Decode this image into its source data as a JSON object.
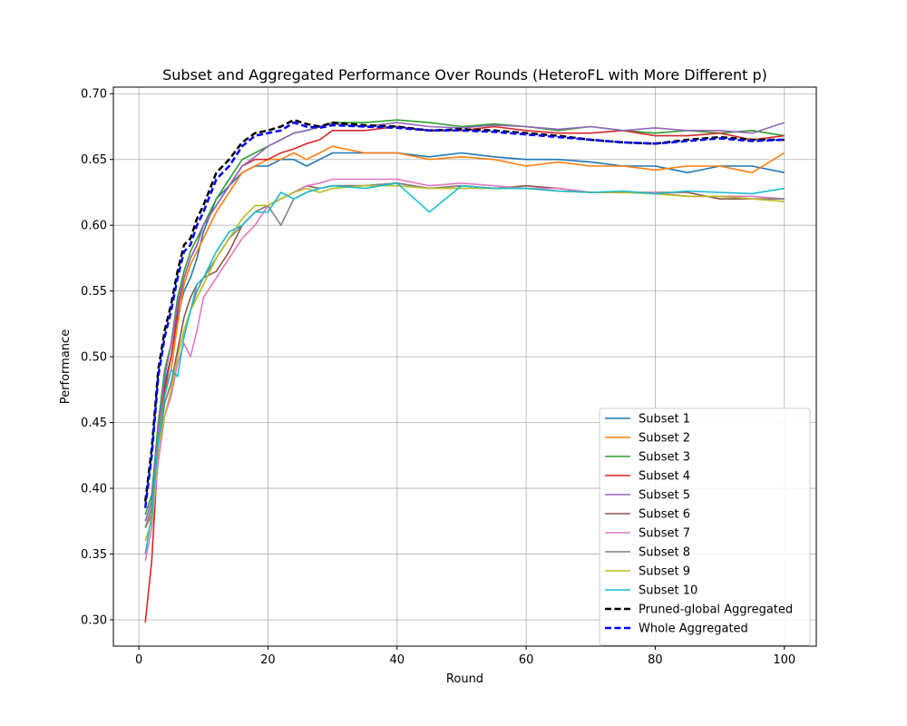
{
  "chart_data": {
    "type": "line",
    "title": "Subset and Aggregated Performance Over Rounds (HeteroFL with More Different p)",
    "xlabel": "Round",
    "ylabel": "Performance",
    "xlim": [
      -3.95,
      104.95
    ],
    "ylim": [
      0.28,
      0.705
    ],
    "xticks": [
      0,
      20,
      40,
      60,
      80,
      100
    ],
    "yticks": [
      0.3,
      0.35,
      0.4,
      0.45,
      0.5,
      0.55,
      0.6,
      0.65,
      0.7
    ],
    "ytick_labels": [
      "0.30",
      "0.35",
      "0.40",
      "0.45",
      "0.50",
      "0.55",
      "0.60",
      "0.65",
      "0.70"
    ],
    "grid": true,
    "legend_position": "lower right",
    "series": [
      {
        "name": "Subset 1",
        "color": "#1f77b4",
        "dashed": false,
        "x": [
          1,
          2,
          3,
          4,
          5,
          6,
          7,
          8,
          9,
          10,
          12,
          14,
          16,
          18,
          20,
          22,
          24,
          26,
          28,
          30,
          35,
          40,
          45,
          50,
          55,
          60,
          65,
          70,
          75,
          80,
          85,
          90,
          95,
          100
        ],
        "y": [
          0.375,
          0.39,
          0.445,
          0.48,
          0.5,
          0.53,
          0.55,
          0.56,
          0.575,
          0.595,
          0.62,
          0.63,
          0.64,
          0.645,
          0.645,
          0.65,
          0.65,
          0.645,
          0.65,
          0.655,
          0.655,
          0.655,
          0.652,
          0.655,
          0.652,
          0.65,
          0.65,
          0.648,
          0.645,
          0.645,
          0.64,
          0.645,
          0.645,
          0.64
        ]
      },
      {
        "name": "Subset 2",
        "color": "#ff7f0e",
        "dashed": false,
        "x": [
          1,
          2,
          3,
          4,
          5,
          6,
          7,
          8,
          9,
          10,
          12,
          14,
          16,
          18,
          20,
          22,
          24,
          26,
          28,
          30,
          35,
          40,
          45,
          50,
          55,
          60,
          65,
          70,
          75,
          80,
          85,
          90,
          95,
          100
        ],
        "y": [
          0.37,
          0.38,
          0.44,
          0.475,
          0.49,
          0.525,
          0.555,
          0.57,
          0.58,
          0.59,
          0.61,
          0.625,
          0.64,
          0.645,
          0.65,
          0.65,
          0.655,
          0.65,
          0.655,
          0.66,
          0.655,
          0.655,
          0.65,
          0.652,
          0.65,
          0.645,
          0.648,
          0.645,
          0.645,
          0.642,
          0.645,
          0.645,
          0.64,
          0.655
        ]
      },
      {
        "name": "Subset 3",
        "color": "#2ca02c",
        "dashed": false,
        "x": [
          1,
          2,
          3,
          4,
          5,
          6,
          7,
          8,
          9,
          10,
          12,
          14,
          16,
          18,
          20,
          22,
          24,
          26,
          28,
          30,
          35,
          40,
          45,
          50,
          55,
          60,
          65,
          70,
          75,
          80,
          85,
          90,
          95,
          100
        ],
        "y": [
          0.38,
          0.395,
          0.45,
          0.49,
          0.51,
          0.545,
          0.565,
          0.58,
          0.59,
          0.6,
          0.62,
          0.635,
          0.65,
          0.655,
          0.66,
          0.665,
          0.67,
          0.672,
          0.675,
          0.678,
          0.678,
          0.68,
          0.678,
          0.675,
          0.677,
          0.675,
          0.672,
          0.675,
          0.672,
          0.67,
          0.672,
          0.67,
          0.672,
          0.668
        ]
      },
      {
        "name": "Subset 4",
        "color": "#d62728",
        "dashed": false,
        "x": [
          1,
          2,
          3,
          4,
          5,
          6,
          7,
          8,
          9,
          10,
          12,
          14,
          16,
          18,
          20,
          22,
          24,
          26,
          28,
          30,
          35,
          40,
          45,
          50,
          55,
          60,
          65,
          70,
          75,
          80,
          85,
          90,
          95,
          100
        ],
        "y": [
          0.298,
          0.345,
          0.43,
          0.475,
          0.5,
          0.535,
          0.56,
          0.575,
          0.585,
          0.6,
          0.615,
          0.63,
          0.645,
          0.65,
          0.65,
          0.655,
          0.658,
          0.662,
          0.665,
          0.672,
          0.672,
          0.675,
          0.672,
          0.672,
          0.675,
          0.672,
          0.67,
          0.67,
          0.672,
          0.668,
          0.668,
          0.67,
          0.665,
          0.668
        ]
      },
      {
        "name": "Subset 5",
        "color": "#9467bd",
        "dashed": false,
        "x": [
          1,
          2,
          3,
          4,
          5,
          6,
          7,
          8,
          9,
          10,
          12,
          14,
          16,
          18,
          20,
          22,
          24,
          26,
          28,
          30,
          35,
          40,
          45,
          50,
          55,
          60,
          65,
          70,
          75,
          80,
          85,
          90,
          95,
          100
        ],
        "y": [
          0.375,
          0.39,
          0.445,
          0.485,
          0.51,
          0.54,
          0.56,
          0.575,
          0.585,
          0.6,
          0.615,
          0.63,
          0.645,
          0.652,
          0.66,
          0.665,
          0.67,
          0.672,
          0.675,
          0.677,
          0.675,
          0.678,
          0.675,
          0.674,
          0.676,
          0.675,
          0.673,
          0.675,
          0.672,
          0.674,
          0.672,
          0.672,
          0.67,
          0.678
        ]
      },
      {
        "name": "Subset 6",
        "color": "#8c564b",
        "dashed": false,
        "x": [
          1,
          2,
          3,
          4,
          5,
          6,
          7,
          8,
          9,
          10,
          12,
          14,
          16,
          18,
          20,
          22,
          24,
          26,
          28,
          30,
          35,
          40,
          45,
          50,
          55,
          60,
          65,
          70,
          75,
          80,
          85,
          90,
          95,
          100
        ],
        "y": [
          0.37,
          0.385,
          0.43,
          0.465,
          0.48,
          0.505,
          0.53,
          0.545,
          0.555,
          0.56,
          0.565,
          0.58,
          0.6,
          0.61,
          0.615,
          0.62,
          0.625,
          0.63,
          0.628,
          0.63,
          0.63,
          0.632,
          0.628,
          0.63,
          0.628,
          0.63,
          0.628,
          0.625,
          0.625,
          0.625,
          0.625,
          0.62,
          0.62,
          0.62
        ]
      },
      {
        "name": "Subset 7",
        "color": "#e377c2",
        "dashed": false,
        "x": [
          1,
          2,
          3,
          4,
          5,
          6,
          7,
          8,
          9,
          10,
          12,
          14,
          16,
          18,
          20,
          22,
          24,
          26,
          28,
          30,
          35,
          40,
          45,
          50,
          55,
          60,
          65,
          70,
          75,
          80,
          85,
          90,
          95,
          100
        ],
        "y": [
          0.345,
          0.37,
          0.42,
          0.455,
          0.47,
          0.495,
          0.51,
          0.5,
          0.52,
          0.545,
          0.56,
          0.575,
          0.59,
          0.6,
          0.615,
          0.62,
          0.625,
          0.63,
          0.632,
          0.635,
          0.635,
          0.635,
          0.63,
          0.632,
          0.63,
          0.628,
          0.628,
          0.625,
          0.625,
          0.625,
          0.622,
          0.622,
          0.622,
          0.62
        ]
      },
      {
        "name": "Subset 8",
        "color": "#7f7f7f",
        "dashed": false,
        "x": [
          1,
          2,
          3,
          4,
          5,
          6,
          7,
          8,
          9,
          10,
          12,
          14,
          16,
          18,
          20,
          22,
          24,
          26,
          28,
          30,
          35,
          40,
          45,
          50,
          55,
          60,
          65,
          70,
          75,
          80,
          85,
          90,
          95,
          100
        ],
        "y": [
          0.37,
          0.385,
          0.43,
          0.465,
          0.48,
          0.5,
          0.52,
          0.535,
          0.55,
          0.56,
          0.575,
          0.59,
          0.6,
          0.61,
          0.615,
          0.6,
          0.62,
          0.625,
          0.628,
          0.63,
          0.63,
          0.632,
          0.628,
          0.63,
          0.628,
          0.628,
          0.626,
          0.625,
          0.625,
          0.624,
          0.622,
          0.622,
          0.62,
          0.62
        ]
      },
      {
        "name": "Subset 9",
        "color": "#bcbd22",
        "dashed": false,
        "x": [
          1,
          2,
          3,
          4,
          5,
          6,
          7,
          8,
          9,
          10,
          12,
          14,
          16,
          18,
          20,
          22,
          24,
          26,
          28,
          30,
          35,
          40,
          45,
          50,
          55,
          60,
          65,
          70,
          75,
          80,
          85,
          90,
          95,
          100
        ],
        "y": [
          0.36,
          0.375,
          0.43,
          0.455,
          0.475,
          0.5,
          0.52,
          0.535,
          0.545,
          0.555,
          0.575,
          0.59,
          0.605,
          0.615,
          0.615,
          0.62,
          0.625,
          0.628,
          0.625,
          0.628,
          0.63,
          0.63,
          0.628,
          0.628,
          0.628,
          0.628,
          0.626,
          0.625,
          0.625,
          0.624,
          0.622,
          0.622,
          0.62,
          0.618
        ]
      },
      {
        "name": "Subset 10",
        "color": "#17becf",
        "dashed": false,
        "x": [
          1,
          2,
          3,
          4,
          5,
          6,
          7,
          8,
          9,
          10,
          12,
          14,
          16,
          18,
          20,
          22,
          24,
          26,
          28,
          30,
          35,
          40,
          45,
          50,
          55,
          60,
          65,
          70,
          75,
          80,
          85,
          90,
          95,
          100
        ],
        "y": [
          0.35,
          0.38,
          0.435,
          0.47,
          0.49,
          0.485,
          0.515,
          0.535,
          0.555,
          0.56,
          0.58,
          0.595,
          0.6,
          0.61,
          0.61,
          0.625,
          0.62,
          0.625,
          0.628,
          0.63,
          0.628,
          0.632,
          0.61,
          0.63,
          0.628,
          0.628,
          0.626,
          0.625,
          0.626,
          0.624,
          0.626,
          0.625,
          0.624,
          0.628
        ]
      },
      {
        "name": "Pruned-global Aggregated",
        "color": "#000000",
        "dashed": true,
        "x": [
          1,
          2,
          3,
          4,
          5,
          6,
          7,
          8,
          9,
          10,
          12,
          14,
          16,
          18,
          20,
          22,
          24,
          26,
          28,
          30,
          35,
          40,
          45,
          50,
          55,
          60,
          65,
          70,
          75,
          80,
          85,
          90,
          95,
          100
        ],
        "y": [
          0.39,
          0.43,
          0.49,
          0.52,
          0.54,
          0.565,
          0.585,
          0.59,
          0.605,
          0.615,
          0.64,
          0.65,
          0.663,
          0.67,
          0.672,
          0.675,
          0.68,
          0.677,
          0.675,
          0.678,
          0.676,
          0.675,
          0.672,
          0.673,
          0.672,
          0.67,
          0.668,
          0.665,
          0.663,
          0.662,
          0.665,
          0.667,
          0.665,
          0.665
        ]
      },
      {
        "name": "Whole Aggregated",
        "color": "#0000ff",
        "dashed": true,
        "x": [
          1,
          2,
          3,
          4,
          5,
          6,
          7,
          8,
          9,
          10,
          12,
          14,
          16,
          18,
          20,
          22,
          24,
          26,
          28,
          30,
          35,
          40,
          45,
          50,
          55,
          60,
          65,
          70,
          75,
          80,
          85,
          90,
          95,
          100
        ],
        "y": [
          0.385,
          0.425,
          0.485,
          0.515,
          0.535,
          0.56,
          0.58,
          0.585,
          0.6,
          0.61,
          0.635,
          0.645,
          0.66,
          0.668,
          0.67,
          0.672,
          0.678,
          0.675,
          0.674,
          0.676,
          0.675,
          0.674,
          0.672,
          0.672,
          0.671,
          0.669,
          0.667,
          0.665,
          0.663,
          0.662,
          0.664,
          0.666,
          0.664,
          0.665
        ]
      }
    ]
  }
}
